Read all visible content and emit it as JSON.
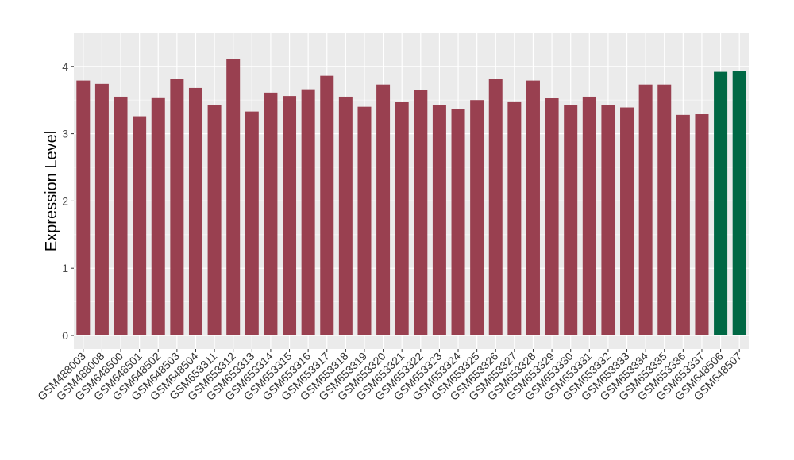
{
  "chart_data": {
    "type": "bar",
    "title": "",
    "xlabel": "",
    "ylabel": "Expression Level",
    "ylim": [
      0,
      4.2
    ],
    "yticks": [
      0,
      1,
      2,
      3,
      4
    ],
    "grid": true,
    "categories": [
      "GSM488003",
      "GSM488008",
      "GSM648500",
      "GSM648501",
      "GSM648502",
      "GSM648503",
      "GSM648504",
      "GSM653311",
      "GSM653312",
      "GSM653313",
      "GSM653314",
      "GSM653315",
      "GSM653316",
      "GSM653317",
      "GSM653318",
      "GSM653319",
      "GSM653320",
      "GSM653321",
      "GSM653322",
      "GSM653323",
      "GSM653324",
      "GSM653325",
      "GSM653326",
      "GSM653327",
      "GSM653328",
      "GSM653329",
      "GSM653330",
      "GSM653331",
      "GSM653332",
      "GSM653333",
      "GSM653334",
      "GSM653335",
      "GSM653336",
      "GSM653337",
      "GSM648506",
      "GSM648507"
    ],
    "values": [
      3.79,
      3.74,
      3.55,
      3.26,
      3.54,
      3.81,
      3.68,
      3.42,
      4.11,
      3.33,
      3.61,
      3.56,
      3.66,
      3.86,
      3.55,
      3.4,
      3.73,
      3.47,
      3.65,
      3.43,
      3.37,
      3.5,
      3.81,
      3.48,
      3.79,
      3.53,
      3.43,
      3.55,
      3.42,
      3.39,
      3.73,
      3.73,
      3.28,
      3.29,
      3.92,
      3.93
    ],
    "groups": [
      "a",
      "a",
      "a",
      "a",
      "a",
      "a",
      "a",
      "a",
      "a",
      "a",
      "a",
      "a",
      "a",
      "a",
      "a",
      "a",
      "a",
      "a",
      "a",
      "a",
      "a",
      "a",
      "a",
      "a",
      "a",
      "a",
      "a",
      "a",
      "a",
      "a",
      "a",
      "a",
      "a",
      "a",
      "b",
      "b"
    ],
    "colors": {
      "a": "#994050",
      "b": "#006844"
    }
  }
}
